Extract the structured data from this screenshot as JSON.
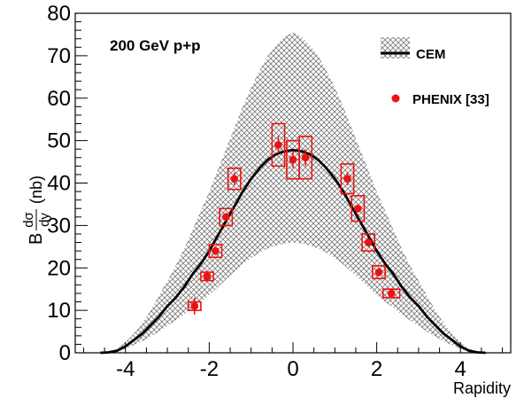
{
  "chart_data": {
    "type": "line",
    "title": "",
    "annotation": "200 GeV p+p",
    "xlabel": "Rapidity",
    "ylabel": "B dσ/dy (nb)",
    "ylabel_parts": {
      "prefix": "B",
      "numerator": "dσ",
      "denominator": "dy",
      "unit": "(nb)"
    },
    "xlim": [
      -5.2,
      5.2
    ],
    "ylim": [
      0,
      80
    ],
    "x_ticks": [
      -4,
      -2,
      0,
      2,
      4
    ],
    "x_tick_labels": [
      "-4",
      "-2",
      "0",
      "2",
      "4"
    ],
    "y_ticks": [
      0,
      10,
      20,
      30,
      40,
      50,
      60,
      70,
      80
    ],
    "y_tick_labels": [
      "0",
      "10",
      "20",
      "30",
      "40",
      "50",
      "60",
      "70",
      "80"
    ],
    "grid": false,
    "legend": {
      "placement": "top-right",
      "entries": [
        {
          "label": "",
          "kind": "hatched-band"
        },
        {
          "label": "CEM",
          "kind": "line"
        },
        {
          "label": "PHENIX [33]",
          "kind": "marker"
        }
      ]
    },
    "colors": {
      "data": "#ee1111",
      "band": "#777777",
      "curve": "#000000"
    },
    "series": [
      {
        "name": "CEM",
        "type": "line",
        "x": [
          -4.6,
          -4.4,
          -4.2,
          -4.0,
          -3.8,
          -3.6,
          -3.4,
          -3.2,
          -3.0,
          -2.8,
          -2.6,
          -2.4,
          -2.2,
          -2.0,
          -1.8,
          -1.6,
          -1.4,
          -1.2,
          -1.0,
          -0.8,
          -0.6,
          -0.4,
          -0.2,
          0.0,
          0.2,
          0.4,
          0.6,
          0.8,
          1.0,
          1.2,
          1.4,
          1.6,
          1.8,
          2.0,
          2.2,
          2.4,
          2.6,
          2.8,
          3.0,
          3.2,
          3.4,
          3.6,
          3.8,
          4.0,
          4.2,
          4.4,
          4.6
        ],
        "y": [
          0,
          0.1,
          0.5,
          1.5,
          3,
          4.5,
          6.5,
          8.5,
          11,
          13,
          15.5,
          18.5,
          21,
          24,
          27.5,
          31,
          34.5,
          38,
          41,
          43.5,
          45.5,
          46.8,
          47.5,
          47.8,
          47.5,
          46.8,
          45.5,
          43.5,
          41,
          38,
          34.5,
          31,
          27.5,
          24,
          21,
          18.5,
          15.5,
          13,
          11,
          8.5,
          6.5,
          4.5,
          3,
          1.5,
          0.5,
          0.1,
          0
        ]
      },
      {
        "name": "CEM band",
        "type": "band",
        "x": [
          -4.6,
          -4.4,
          -4.2,
          -4.0,
          -3.8,
          -3.6,
          -3.4,
          -3.2,
          -3.0,
          -2.8,
          -2.6,
          -2.4,
          -2.2,
          -2.0,
          -1.8,
          -1.6,
          -1.4,
          -1.2,
          -1.0,
          -0.8,
          -0.6,
          -0.4,
          -0.2,
          0.0,
          0.2,
          0.4,
          0.6,
          0.8,
          1.0,
          1.2,
          1.4,
          1.6,
          1.8,
          2.0,
          2.2,
          2.4,
          2.6,
          2.8,
          3.0,
          3.2,
          3.4,
          3.6,
          3.8,
          4.0,
          4.2,
          4.4,
          4.6
        ],
        "y_low": [
          0,
          0.1,
          0.3,
          0.9,
          1.8,
          2.7,
          3.8,
          5,
          6.4,
          7.6,
          9,
          10.6,
          12,
          13.6,
          15.4,
          17.3,
          19.1,
          20.8,
          22.3,
          23.6,
          24.6,
          25.3,
          25.8,
          26,
          25.8,
          25.3,
          24.6,
          23.6,
          22.3,
          20.8,
          19.1,
          17.3,
          15.4,
          13.6,
          12,
          10.6,
          9,
          7.6,
          6.4,
          5,
          3.8,
          2.7,
          1.8,
          0.9,
          0.3,
          0.1,
          0
        ],
        "y_high": [
          0,
          0.3,
          1,
          2.5,
          4.5,
          7,
          10,
          13.5,
          17,
          20.5,
          24.5,
          29,
          33.5,
          38,
          43,
          48,
          53,
          58,
          62.5,
          66.5,
          70,
          72.5,
          74.5,
          75.5,
          74.5,
          72.5,
          70,
          66.5,
          62.5,
          58,
          53,
          48,
          43,
          38,
          33.5,
          29,
          24.5,
          20.5,
          17,
          13.5,
          10,
          7,
          4.5,
          2.5,
          1,
          0.3,
          0
        ]
      },
      {
        "name": "PHENIX [33]",
        "type": "scatter",
        "points": [
          {
            "x": -2.35,
            "y": 11,
            "stat": 2,
            "syst": 1,
            "sys_dx": 0.15
          },
          {
            "x": -2.05,
            "y": 18,
            "stat": 1,
            "syst": 1,
            "sys_dx": 0.15
          },
          {
            "x": -1.85,
            "y": 24,
            "stat": 1,
            "syst": 1.5,
            "sys_dx": 0.15
          },
          {
            "x": -1.6,
            "y": 32,
            "stat": 1,
            "syst": 2,
            "sys_dx": 0.15
          },
          {
            "x": -1.4,
            "y": 41,
            "stat": 1.5,
            "syst": 2.5,
            "sys_dx": 0.15
          },
          {
            "x": -0.35,
            "y": 49,
            "stat": 2,
            "syst": 5,
            "sys_dx": 0.15
          },
          {
            "x": 0.0,
            "y": 45.5,
            "stat": 2,
            "syst": 4.5,
            "sys_dx": 0.15
          },
          {
            "x": 0.3,
            "y": 46,
            "stat": 2,
            "syst": 5,
            "sys_dx": 0.15
          },
          {
            "x": 1.3,
            "y": 41,
            "stat": 1.5,
            "syst": 3.5,
            "sys_dx": 0.15
          },
          {
            "x": 1.55,
            "y": 34,
            "stat": 1,
            "syst": 3,
            "sys_dx": 0.15
          },
          {
            "x": 1.8,
            "y": 26,
            "stat": 1,
            "syst": 2,
            "sys_dx": 0.15
          },
          {
            "x": 2.05,
            "y": 19,
            "stat": 1,
            "syst": 1.5,
            "sys_dx": 0.15
          },
          {
            "x": 2.35,
            "y": 14,
            "stat": 1,
            "syst": 1,
            "sys_dx": 0.2
          }
        ]
      }
    ]
  }
}
